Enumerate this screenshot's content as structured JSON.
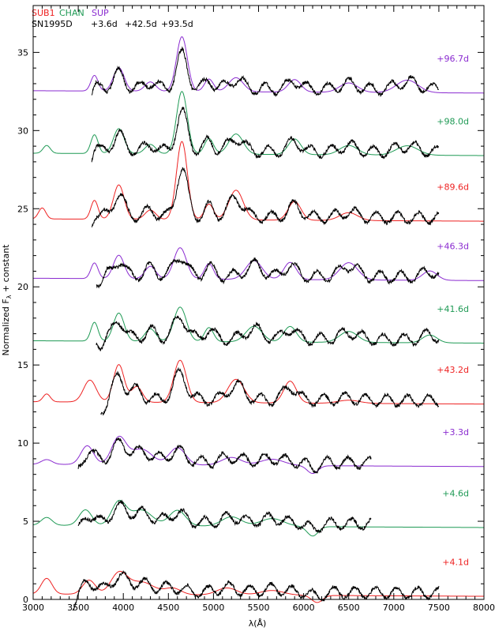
{
  "chart_data": {
    "type": "line",
    "xlabel": "λ(Å)",
    "ylabel": "Normalized F",
    "ylabel_sub": "λ",
    "ylabel_suffix": " + constant",
    "xlim": [
      3000,
      8000
    ],
    "ylim": [
      0,
      38
    ],
    "x_ticks": [
      "3000",
      "3500",
      "4000",
      "4500",
      "5000",
      "5500",
      "6000",
      "6500",
      "7000",
      "7500",
      "8000"
    ],
    "y_ticks": [
      "0",
      "5",
      "10",
      "15",
      "20",
      "25",
      "30",
      "35"
    ],
    "legend": {
      "models": [
        {
          "name": "SUB1",
          "color": "#ee2222"
        },
        {
          "name": "CHAN",
          "color": "#1f9a55"
        },
        {
          "name": "SUP",
          "color": "#8a2bd0"
        }
      ],
      "observed_label": "SN1995D",
      "observed_epochs": [
        "+3.6d",
        "+42.5d",
        "+93.5d"
      ],
      "observed_color": "#000000"
    },
    "series": [
      {
        "epoch": "+4.1d",
        "model": "SUB1",
        "color": "#ee2222",
        "offset": 0.0,
        "obs_start": 3440,
        "obs_end": 7500,
        "model_start": 3000,
        "features": [
          [
            3150,
            1.0,
            60
          ],
          [
            3620,
            0.9,
            70
          ],
          [
            3950,
            1.3,
            90
          ],
          [
            4200,
            0.8,
            140
          ],
          [
            4550,
            0.4,
            90
          ],
          [
            5150,
            0.45,
            110
          ],
          [
            5650,
            0.3,
            130
          ],
          [
            6150,
            -0.45,
            60
          ]
        ]
      },
      {
        "epoch": "+4.6d",
        "model": "CHAN",
        "color": "#1f9a55",
        "offset": 4.4,
        "obs_start": 3500,
        "obs_end": 6750,
        "model_start": 3000,
        "features": [
          [
            3150,
            0.5,
            60
          ],
          [
            3580,
            1.0,
            70
          ],
          [
            3950,
            1.5,
            80
          ],
          [
            4200,
            1.0,
            120
          ],
          [
            4600,
            1.0,
            90
          ],
          [
            5200,
            0.6,
            110
          ],
          [
            5650,
            0.5,
            130
          ],
          [
            6100,
            -0.6,
            60
          ]
        ]
      },
      {
        "epoch": "+3.3d",
        "model": "SUP",
        "color": "#8a2bd0",
        "offset": 8.3,
        "obs_start": 3500,
        "obs_end": 6750,
        "model_start": 3000,
        "features": [
          [
            3150,
            0.3,
            60
          ],
          [
            3600,
            1.2,
            70
          ],
          [
            3950,
            1.7,
            80
          ],
          [
            4200,
            1.0,
            120
          ],
          [
            4600,
            1.1,
            90
          ],
          [
            5200,
            0.5,
            110
          ],
          [
            5650,
            0.4,
            130
          ],
          [
            6100,
            -0.5,
            60
          ]
        ]
      },
      {
        "epoch": "+43.2d",
        "model": "SUB1",
        "color": "#ee2222",
        "offset": 12.3,
        "obs_start": 3750,
        "obs_end": 7500,
        "model_start": 3000,
        "features": [
          [
            3150,
            0.5,
            40
          ],
          [
            3630,
            1.4,
            70
          ],
          [
            3950,
            2.4,
            60
          ],
          [
            4150,
            1.0,
            60
          ],
          [
            4630,
            2.7,
            70
          ],
          [
            5250,
            1.5,
            90
          ],
          [
            5850,
            1.4,
            70
          ],
          [
            6500,
            0.2,
            120
          ]
        ]
      },
      {
        "epoch": "+41.6d",
        "model": "CHAN",
        "color": "#1f9a55",
        "offset": 16.2,
        "obs_start": 3700,
        "obs_end": 7500,
        "model_start": 3000,
        "features": [
          [
            3680,
            1.2,
            40
          ],
          [
            3950,
            1.8,
            60
          ],
          [
            4300,
            0.8,
            60
          ],
          [
            4630,
            2.2,
            70
          ],
          [
            4950,
            0.9,
            50
          ],
          [
            5450,
            1.0,
            90
          ],
          [
            5850,
            1.0,
            70
          ],
          [
            6500,
            0.7,
            100
          ],
          [
            7400,
            0.5,
            80
          ]
        ]
      },
      {
        "epoch": "+46.3d",
        "model": "SUP",
        "color": "#8a2bd0",
        "offset": 20.2,
        "obs_start": 3700,
        "obs_end": 7500,
        "model_start": 3000,
        "features": [
          [
            3680,
            1.0,
            40
          ],
          [
            3950,
            1.5,
            60
          ],
          [
            4300,
            0.8,
            60
          ],
          [
            4630,
            2.0,
            70
          ],
          [
            4950,
            1.0,
            50
          ],
          [
            5450,
            1.2,
            90
          ],
          [
            5850,
            1.1,
            70
          ],
          [
            6500,
            1.1,
            100
          ],
          [
            7400,
            0.6,
            80
          ]
        ]
      },
      {
        "epoch": "+89.6d",
        "model": "SUB1",
        "color": "#ee2222",
        "offset": 24.0,
        "obs_start": 3650,
        "obs_end": 7500,
        "model_start": 3000,
        "features": [
          [
            3100,
            0.7,
            40
          ],
          [
            3680,
            1.2,
            40
          ],
          [
            3950,
            2.2,
            60
          ],
          [
            4300,
            0.6,
            60
          ],
          [
            4650,
            5.0,
            60
          ],
          [
            4950,
            1.0,
            50
          ],
          [
            5250,
            1.9,
            80
          ],
          [
            5900,
            1.2,
            70
          ],
          [
            6500,
            0.5,
            100
          ]
        ]
      },
      {
        "epoch": "+98.0d",
        "model": "CHAN",
        "color": "#1f9a55",
        "offset": 28.2,
        "obs_start": 3650,
        "obs_end": 7500,
        "model_start": 3000,
        "features": [
          [
            3150,
            0.5,
            40
          ],
          [
            3680,
            1.2,
            40
          ],
          [
            3950,
            1.6,
            60
          ],
          [
            4300,
            0.6,
            60
          ],
          [
            4650,
            4.0,
            60
          ],
          [
            4950,
            1.0,
            50
          ],
          [
            5250,
            1.3,
            80
          ],
          [
            5900,
            1.0,
            70
          ],
          [
            6500,
            0.6,
            100
          ],
          [
            7150,
            0.6,
            120
          ]
        ]
      },
      {
        "epoch": "+96.7d",
        "model": "SUP",
        "color": "#8a2bd0",
        "offset": 32.2,
        "obs_start": 3650,
        "obs_end": 7500,
        "model_start": 3000,
        "features": [
          [
            3680,
            1.0,
            40
          ],
          [
            3950,
            1.5,
            60
          ],
          [
            4300,
            0.6,
            60
          ],
          [
            4650,
            3.5,
            60
          ],
          [
            4950,
            0.8,
            50
          ],
          [
            5250,
            0.9,
            80
          ],
          [
            5900,
            0.8,
            70
          ],
          [
            6500,
            0.6,
            100
          ],
          [
            7150,
            0.8,
            120
          ]
        ]
      }
    ]
  }
}
